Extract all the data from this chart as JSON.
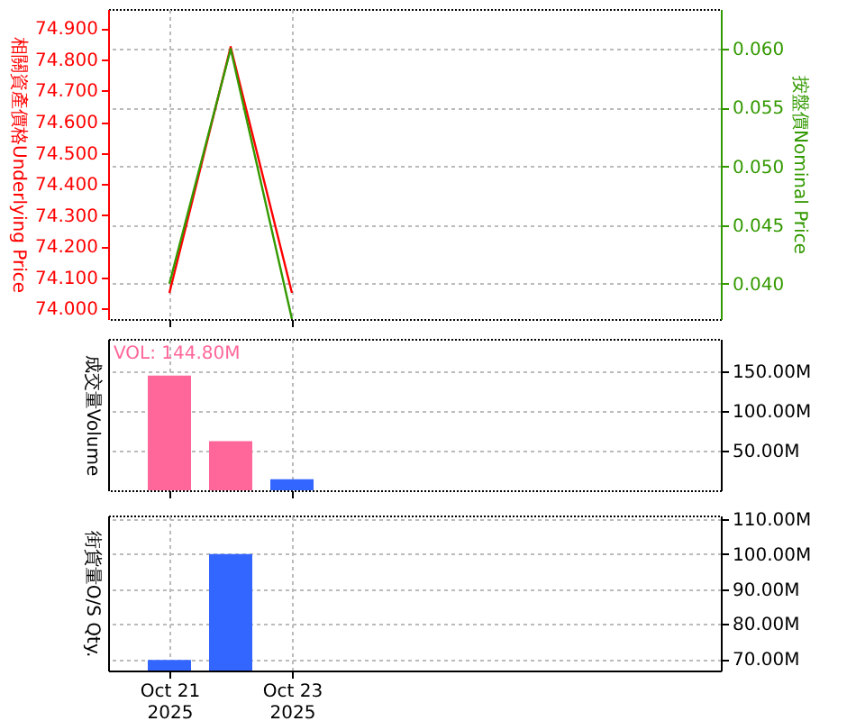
{
  "chart_data": [
    {
      "type": "line",
      "ylabel": "相關資產價格Underlying Price",
      "y2label": "按盤價Nominal Price",
      "x": [
        "2025-10-21",
        "2025-10-22",
        "2025-10-23"
      ],
      "xlim": [
        "2025-10-20",
        "2025-10-30"
      ],
      "xticks": [
        {
          "value": "2025-10-21",
          "label": null
        },
        {
          "value": "2025-10-23",
          "label": null
        }
      ],
      "series": [
        {
          "color": "#ff0000",
          "values": [
            74.05,
            74.84,
            74.05
          ]
        },
        {
          "color": "#339900",
          "axis": "y2",
          "values": [
            0.04,
            0.06,
            0.037
          ]
        }
      ],
      "ylim": [
        73.966,
        74.962
      ],
      "yticks": [
        {
          "value": 74,
          "label": "74.000"
        },
        {
          "value": 74.1,
          "label": "74.100"
        },
        {
          "value": 74.2,
          "label": "74.200"
        },
        {
          "value": 74.3,
          "label": "74.300"
        },
        {
          "value": 74.4,
          "label": "74.400"
        },
        {
          "value": 74.5,
          "label": "74.500"
        },
        {
          "value": 74.6,
          "label": "74.600"
        },
        {
          "value": 74.7,
          "label": "74.700"
        },
        {
          "value": 74.8,
          "label": "74.800"
        },
        {
          "value": 74.9,
          "label": "74.900"
        }
      ],
      "y2lim": [
        0.037,
        0.0634
      ],
      "y2ticks": [
        {
          "value": 0.04,
          "label": "0.040"
        },
        {
          "value": 0.045,
          "label": "0.045"
        },
        {
          "value": 0.05,
          "label": "0.050"
        },
        {
          "value": 0.055,
          "label": "0.055"
        },
        {
          "value": 0.06,
          "label": "0.060"
        }
      ],
      "grid": true,
      "tick_labels": "y"
    },
    {
      "type": "bar",
      "ylabel": "成交量Volume",
      "x": [
        "2025-10-21",
        "2025-10-22",
        "2025-10-23"
      ],
      "xlim": [
        "2025-10-20",
        "2025-10-30"
      ],
      "xticks": [
        {
          "value": "2025-10-21",
          "label": null
        },
        {
          "value": "2025-10-23",
          "label": null
        }
      ],
      "values": [
        144.8,
        62,
        14
      ],
      "colors": [
        "#ff6699",
        "#ff6699",
        "#3366ff"
      ],
      "ylim": [
        0,
        191
      ],
      "yticks": [
        {
          "value": 50,
          "label": "50.00M"
        },
        {
          "value": 100,
          "label": "100.00M"
        },
        {
          "value": 150,
          "label": "150.00M"
        }
      ],
      "annotations": [
        "VOL: 144.80M"
      ],
      "grid": true,
      "tick_labels": "y"
    },
    {
      "type": "bar",
      "ylabel": "街貨量O/S Qty.",
      "x": [
        "2025-10-21",
        "2025-10-22"
      ],
      "xlim": [
        "2025-10-20",
        "2025-10-30"
      ],
      "xticks": [
        {
          "value": "2025-10-21",
          "label": "Oct 21\n2025"
        },
        {
          "value": "2025-10-23",
          "label": "Oct 23\n2025"
        }
      ],
      "values": [
        69.7,
        100
      ],
      "colors": [
        "#3366ff",
        "#3366ff"
      ],
      "ylim": [
        66.7,
        111
      ],
      "yticks": [
        {
          "value": 70,
          "label": "70.00M"
        },
        {
          "value": 80,
          "label": "80.00M"
        },
        {
          "value": 90,
          "label": "90.00M"
        },
        {
          "value": 100,
          "label": "100.00M"
        },
        {
          "value": 110,
          "label": "110.00M"
        }
      ],
      "grid": true
    }
  ]
}
